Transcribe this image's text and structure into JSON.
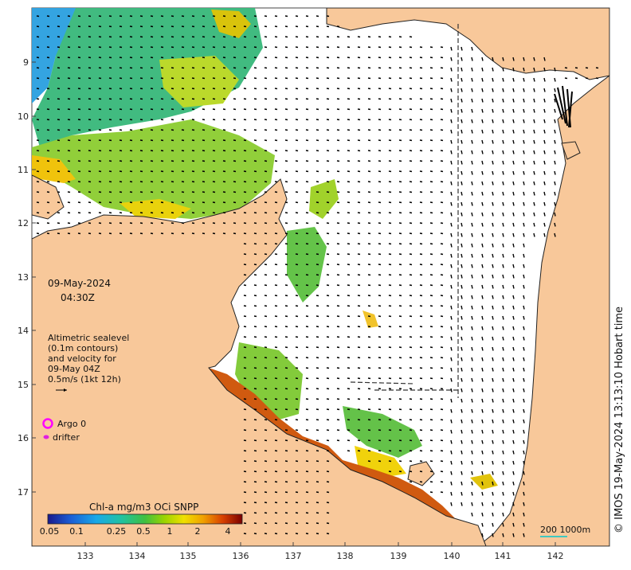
{
  "map": {
    "lat_ticks": [
      "9",
      "10",
      "11",
      "12",
      "13",
      "14",
      "15",
      "16",
      "17"
    ],
    "lon_ticks": [
      "133",
      "134",
      "135",
      "136",
      "137",
      "138",
      "139",
      "140",
      "141",
      "142"
    ],
    "date_label": "09-May-2024",
    "time_label": "04:30Z",
    "legend_lines": [
      "Altimetric sealevel",
      "(0.1m contours)",
      "and velocity for",
      "09-May 04Z",
      "0.5m/s (1kt 12h)"
    ],
    "argo_label": "Argo 0",
    "drifter_label": "drifter",
    "colorbar_title": "Chl-a mg/m3 OCi SNPP",
    "colorbar_ticks": [
      "0.05",
      "0.1",
      "0.25",
      "0.5",
      "1",
      "2",
      "4"
    ],
    "scale_label": "200  1000m",
    "credit": "© IMOS 19-May-2024 13:13:10 Hobart time",
    "colors": {
      "land": "#f8c89a",
      "sea": "#ffffff",
      "argo": "#ff00ff",
      "drifter": "#e020e0",
      "scale_line": "#40c8c0"
    }
  }
}
